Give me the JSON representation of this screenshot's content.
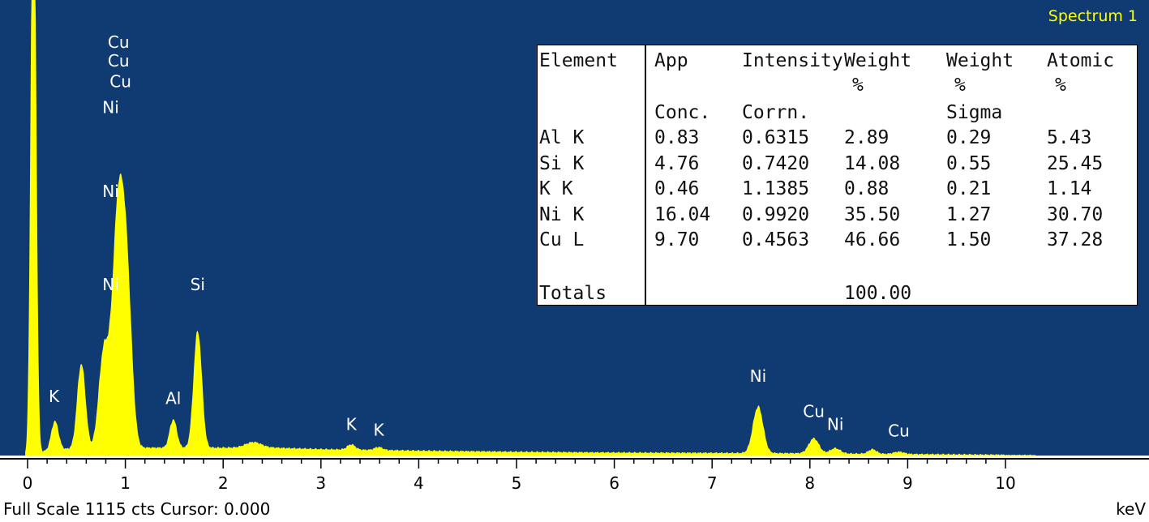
{
  "chart_data": {
    "type": "line",
    "title": "Spectrum 1",
    "xunit": "keV",
    "xlim": [
      0,
      10
    ],
    "x_ticks": [
      "0",
      "1",
      "2",
      "3",
      "4",
      "5",
      "6",
      "7",
      "8",
      "9",
      "10"
    ],
    "full_scale_cts": 1115,
    "colors": {
      "background": "#103a72",
      "spectrum": "#ffff00",
      "axis": "#000000",
      "label": "#ffffff",
      "title": "#ffff00"
    },
    "peak_labels": [
      {
        "text": "Cu",
        "x": 0.93,
        "y": 1080
      },
      {
        "text": "Cu",
        "x": 0.93,
        "y": 1030
      },
      {
        "text": "Cu",
        "x": 0.95,
        "y": 975
      },
      {
        "text": "Ni",
        "x": 0.85,
        "y": 905
      },
      {
        "text": "Ni",
        "x": 0.85,
        "y": 680
      },
      {
        "text": "Ni",
        "x": 0.85,
        "y": 430
      },
      {
        "text": "Si",
        "x": 1.74,
        "y": 430
      },
      {
        "text": "K",
        "x": 0.27,
        "y": 130
      },
      {
        "text": "Al",
        "x": 1.49,
        "y": 125
      },
      {
        "text": "K",
        "x": 3.31,
        "y": 55
      },
      {
        "text": "K",
        "x": 3.59,
        "y": 40
      },
      {
        "text": "Ni",
        "x": 7.47,
        "y": 185
      },
      {
        "text": "Cu",
        "x": 8.04,
        "y": 90
      },
      {
        "text": "Ni",
        "x": 8.26,
        "y": 55
      },
      {
        "text": "Cu",
        "x": 8.91,
        "y": 38
      }
    ],
    "spectrum": {
      "baseline": [
        [
          0.0,
          0
        ],
        [
          0.12,
          8
        ],
        [
          0.25,
          15
        ],
        [
          0.5,
          18
        ],
        [
          1.2,
          20
        ],
        [
          2.0,
          20
        ],
        [
          2.5,
          20
        ],
        [
          3.0,
          16
        ],
        [
          4.0,
          12
        ],
        [
          5.0,
          9
        ],
        [
          6.0,
          7
        ],
        [
          7.0,
          6
        ],
        [
          8.0,
          5
        ],
        [
          8.5,
          4
        ],
        [
          9.0,
          3
        ],
        [
          9.5,
          2
        ],
        [
          10.0,
          1
        ]
      ],
      "peaks": [
        {
          "center": 0.06,
          "height": 1600,
          "sigma": 0.025
        },
        {
          "center": 0.28,
          "height": 75,
          "sigma": 0.035
        },
        {
          "center": 0.55,
          "height": 225,
          "sigma": 0.04
        },
        {
          "center": 0.78,
          "height": 250,
          "sigma": 0.05
        },
        {
          "center": 0.93,
          "height": 640,
          "sigma": 0.06
        },
        {
          "center": 1.02,
          "height": 330,
          "sigma": 0.05
        },
        {
          "center": 1.49,
          "height": 75,
          "sigma": 0.035
        },
        {
          "center": 1.74,
          "height": 310,
          "sigma": 0.04
        },
        {
          "center": 2.31,
          "height": 15,
          "sigma": 0.08
        },
        {
          "center": 3.31,
          "height": 14,
          "sigma": 0.04
        },
        {
          "center": 3.59,
          "height": 8,
          "sigma": 0.04
        },
        {
          "center": 7.47,
          "height": 124,
          "sigma": 0.05
        },
        {
          "center": 8.04,
          "height": 40,
          "sigma": 0.05
        },
        {
          "center": 8.26,
          "height": 14,
          "sigma": 0.05
        },
        {
          "center": 8.64,
          "height": 12,
          "sigma": 0.04
        },
        {
          "center": 8.91,
          "height": 6,
          "sigma": 0.05
        }
      ]
    }
  },
  "table": {
    "headers": [
      {
        "line1": "Element",
        "line2": "",
        "line3": ""
      },
      {
        "line1": "App",
        "line2": "",
        "line3": "Conc."
      },
      {
        "line1": "Intensity",
        "line2": "",
        "line3": "Corrn."
      },
      {
        "line1": "Weight",
        "line2": "%",
        "line3": ""
      },
      {
        "line1": "Weight",
        "line2": "%",
        "line3": "Sigma"
      },
      {
        "line1": "Atomic",
        "line2": "%",
        "line3": ""
      }
    ],
    "rows": [
      [
        "Al K",
        "0.83",
        "0.6315",
        "2.89",
        "0.29",
        "5.43"
      ],
      [
        "Si K",
        "4.76",
        "0.7420",
        "14.08",
        "0.55",
        "25.45"
      ],
      [
        "K K",
        "0.46",
        "1.1385",
        "0.88",
        "0.21",
        "1.14"
      ],
      [
        "Ni K",
        "16.04",
        "0.9920",
        "35.50",
        "1.27",
        "30.70"
      ],
      [
        "Cu L",
        "9.70",
        "0.4563",
        "46.66",
        "1.50",
        "37.28"
      ]
    ],
    "totals_label": "Totals",
    "totals_value": "100.00"
  },
  "footer": {
    "left": "Full Scale 1115 cts Cursor: 0.000",
    "right": "keV"
  }
}
